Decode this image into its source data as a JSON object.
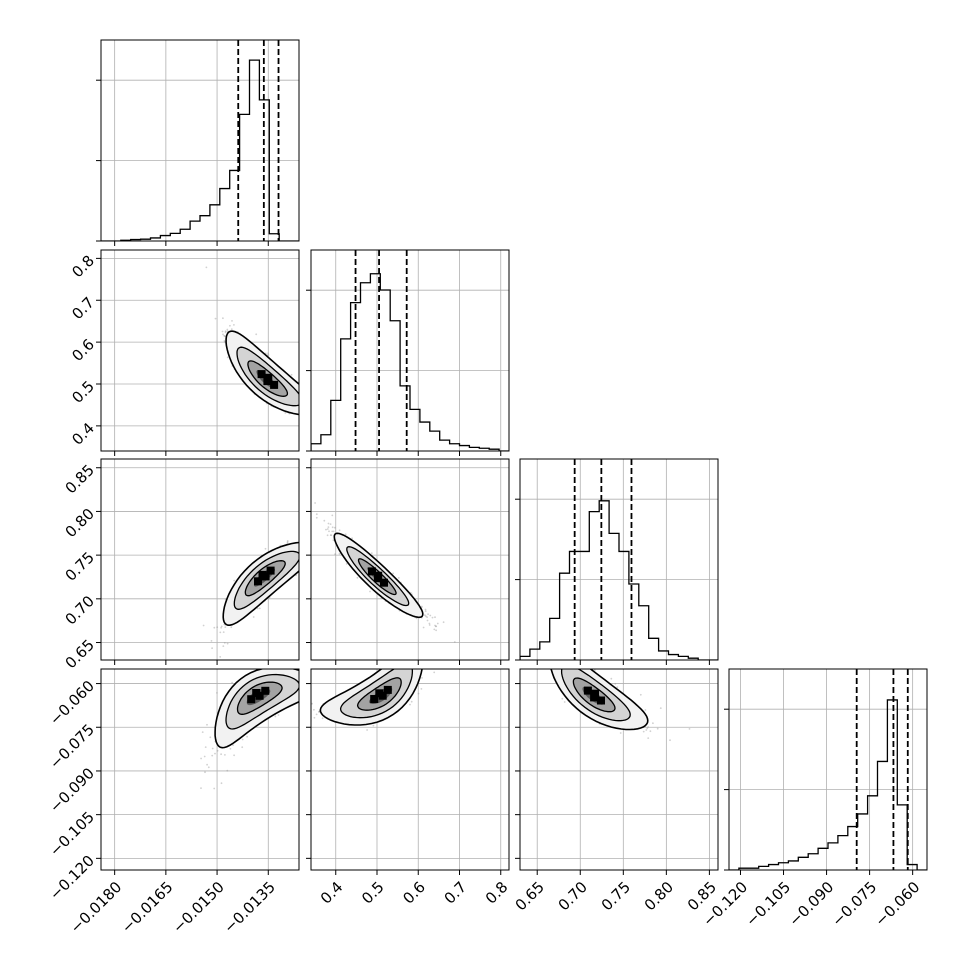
{
  "chart_data": {
    "type": "corner",
    "title": "",
    "n_params": 4,
    "parameters": [
      {
        "label": "",
        "range": [
          -0.0184,
          -0.0126
        ],
        "ticks": [
          -0.018,
          -0.0165,
          -0.015,
          -0.0135
        ],
        "tick_labels": [
          "−0.0180",
          "−0.0165",
          "−0.0150",
          "−0.0135"
        ],
        "quantiles": [
          -0.01438,
          -0.01363,
          -0.0132
        ],
        "hist": [
          0.0,
          0.0,
          0.004,
          0.008,
          0.01,
          0.017,
          0.03,
          0.042,
          0.065,
          0.11,
          0.14,
          0.2,
          0.29,
          0.39,
          0.7,
          1.0,
          0.78,
          0.04,
          0.0,
          0.0
        ]
      },
      {
        "label": "",
        "range": [
          0.34,
          0.82
        ],
        "ticks": [
          0.4,
          0.5,
          0.6,
          0.7,
          0.8
        ],
        "tick_labels": [
          "0.4",
          "0.5",
          "0.6",
          "0.7",
          "0.8"
        ],
        "quantiles": [
          0.448,
          0.505,
          0.572
        ],
        "hist": [
          0.04,
          0.09,
          0.28,
          0.62,
          0.82,
          0.93,
          0.98,
          0.89,
          0.72,
          0.36,
          0.23,
          0.16,
          0.11,
          0.06,
          0.04,
          0.03,
          0.02,
          0.015,
          0.01,
          0.0
        ]
      },
      {
        "label": "",
        "range": [
          0.63,
          0.86
        ],
        "ticks": [
          0.65,
          0.7,
          0.75,
          0.8,
          0.85
        ],
        "tick_labels": [
          "0.65",
          "0.70",
          "0.75",
          "0.80",
          "0.85"
        ],
        "quantiles": [
          0.6935,
          0.7245,
          0.7595
        ],
        "hist": [
          0.02,
          0.06,
          0.1,
          0.23,
          0.48,
          0.6,
          0.6,
          0.82,
          0.88,
          0.7,
          0.6,
          0.42,
          0.3,
          0.12,
          0.05,
          0.03,
          0.02,
          0.01,
          0.0,
          0.0
        ]
      },
      {
        "label": "",
        "range": [
          -0.124,
          -0.055
        ],
        "ticks": [
          -0.12,
          -0.105,
          -0.09,
          -0.075,
          -0.06
        ],
        "tick_labels": [
          "−0.120",
          "−0.105",
          "−0.090",
          "−0.075",
          "−0.060"
        ],
        "quantiles": [
          -0.0795,
          -0.0667,
          -0.0617
        ],
        "hist": [
          0.0,
          0.01,
          0.01,
          0.02,
          0.03,
          0.04,
          0.05,
          0.07,
          0.09,
          0.12,
          0.15,
          0.19,
          0.24,
          0.31,
          0.41,
          0.6,
          0.94,
          0.36,
          0.03,
          0.0
        ]
      }
    ],
    "histogram_grid_y": [
      0.4,
      0.8
    ],
    "pairs": [
      {
        "row": 1,
        "col": 0,
        "mode": [
          -0.01355,
          0.51
        ],
        "slope": -0.86,
        "sd_major": 0.3,
        "sd_minor": 0.09,
        "curve": 0.28
      },
      {
        "row": 2,
        "col": 0,
        "mode": [
          -0.01362,
          0.725
        ],
        "slope": 0.84,
        "sd_major": 0.3,
        "sd_minor": 0.09,
        "curve": -0.28
      },
      {
        "row": 2,
        "col": 1,
        "mode": [
          0.5,
          0.725
        ],
        "slope": -0.93,
        "sd_major": 0.3,
        "sd_minor": 0.06,
        "curve": 0.1
      },
      {
        "row": 3,
        "col": 0,
        "mode": [
          -0.0138,
          -0.0643
        ],
        "slope": 0.6,
        "sd_major": 0.3,
        "sd_minor": 0.12,
        "curve": -0.42
      },
      {
        "row": 3,
        "col": 1,
        "mode": [
          0.51,
          -0.0643
        ],
        "slope": 0.65,
        "sd_major": 0.3,
        "sd_minor": 0.11,
        "curve": 0.42
      },
      {
        "row": 3,
        "col": 2,
        "mode": [
          0.715,
          -0.0643
        ],
        "slope": -0.75,
        "sd_major": 0.3,
        "sd_minor": 0.1,
        "curve": 0.25
      }
    ],
    "grid": true,
    "colors": {
      "points": "#9a9a9a",
      "contour": "#000000",
      "density": "#000000",
      "quantile_line": "#000000"
    }
  }
}
